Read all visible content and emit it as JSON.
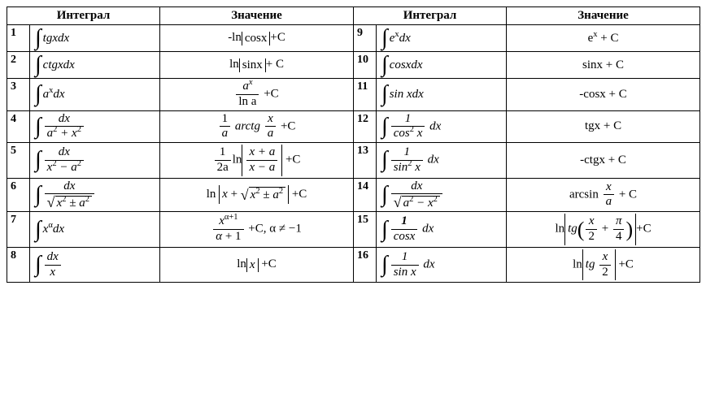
{
  "headers": {
    "integral": "Интеграл",
    "value": "Значение"
  },
  "rows": [
    {
      "n1": "1",
      "n2": "9"
    },
    {
      "n1": "2",
      "n2": "10"
    },
    {
      "n1": "3",
      "n2": "11"
    },
    {
      "n1": "4",
      "n2": "12"
    },
    {
      "n1": "5",
      "n2": "13"
    },
    {
      "n1": "6",
      "n2": "14"
    },
    {
      "n1": "7",
      "n2": "15"
    },
    {
      "n1": "8",
      "n2": "16"
    }
  ],
  "text": {
    "tgxdx": "tgxdx",
    "ctgxdx": "ctgxdx",
    "axdx_a": "a",
    "axdx_x": "x",
    "axdx_dx": "dx",
    "dx": "dx",
    "a2x2": "a",
    "x2a2": "x",
    "xadx_pref": "x",
    "alpha": "α",
    "alphap1": "α+1",
    "lncosx": "-ln",
    "cosx": "cosx",
    "pC": "+C",
    "pCsp": "+ C",
    "lnsinx": "ln",
    "sinx": "sinx",
    "lna": "ln a",
    "arctg": "arctg",
    "one": "1",
    "a": "a",
    "x": "x",
    "twoa": "2a",
    "ln": "ln",
    "xpa": "x + a",
    "xma": "x − a",
    "xalpha_cond": ", α ≠ −1",
    "exdx_e": "e",
    "exdx_dx": "dx",
    "cosxdx": "cosxdx",
    "sinxdx": "sin xdx",
    "cos2x": "cos",
    "sin2x": "sin",
    "sq2": "2",
    "cosx_d": "cosx",
    "sinx_d": "sin x",
    "ex_c": "e",
    "sinx_c": "sinx + C",
    "mcosx_c": "-cosx + C",
    "tgx_c": "tgx + C",
    "mctgx_c": "-ctgx + C",
    "arcsin": "arcsin",
    "tg": "tg",
    "pi": "π",
    "two": "2",
    "four": "4",
    "plus": "+",
    "pm": "±"
  }
}
